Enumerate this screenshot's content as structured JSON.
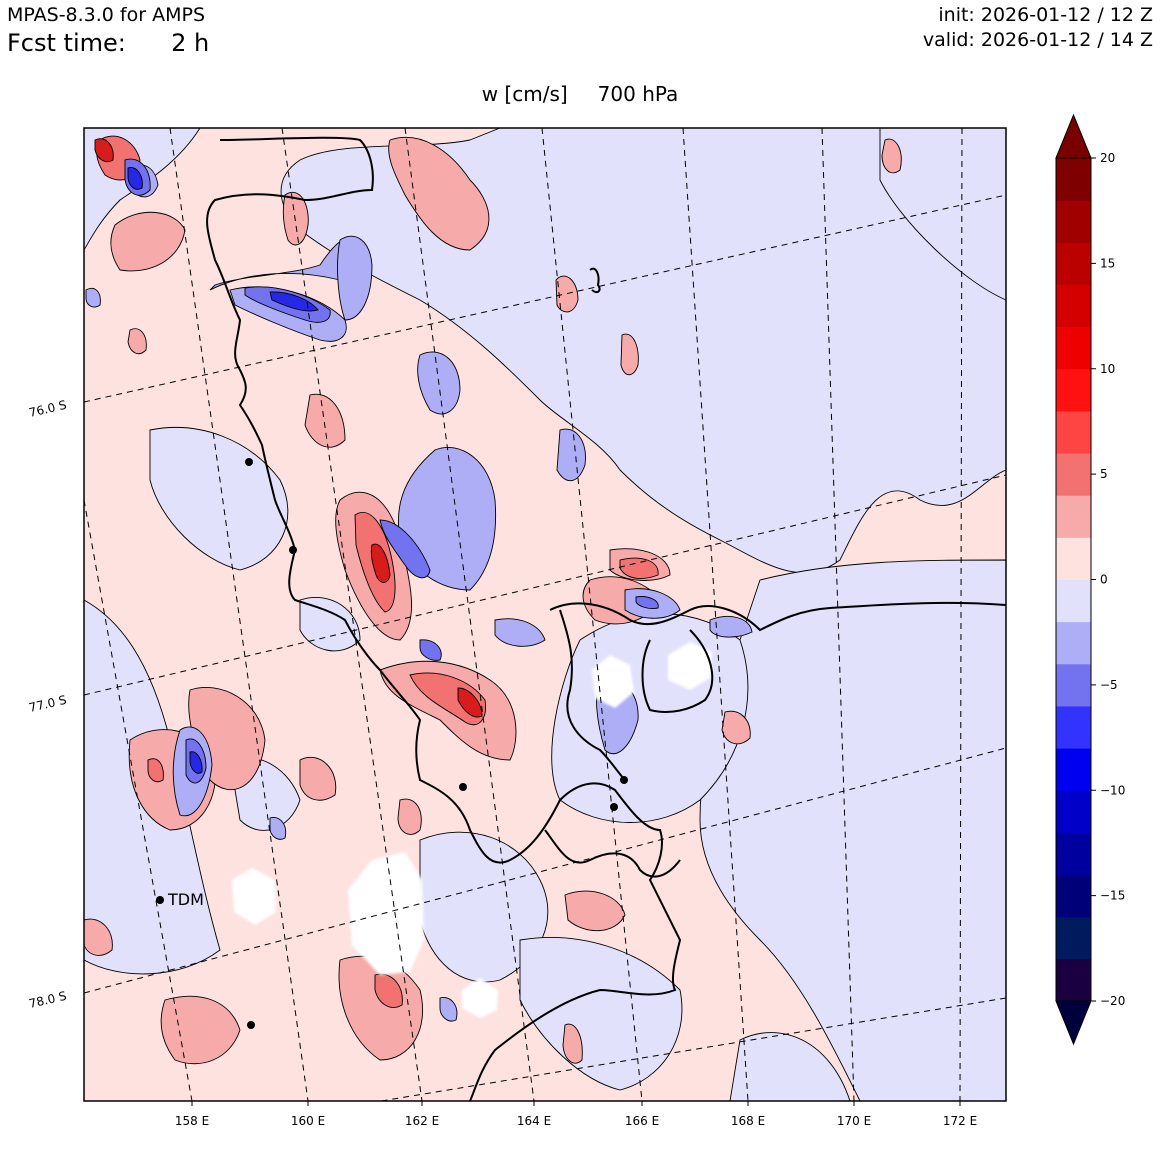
{
  "header": {
    "model": "MPAS-8.3.0 for AMPS",
    "fcst_label": "Fcst time:",
    "fcst_value": "2 h",
    "init": "init: 2026-01-12 / 12 Z",
    "valid": "valid: 2026-01-12 / 14 Z"
  },
  "map": {
    "field": "w [cm/s]",
    "level": "700 hPa",
    "title": "w [cm/s]    700 hPa",
    "station_label": "TDM",
    "lon_labels": [
      "158 E",
      "160 E",
      "162 E",
      "164 E",
      "166 E",
      "168 E",
      "170 E",
      "172 E"
    ],
    "lat_labels": [
      "76.0 S",
      "77.0 S",
      "78.0 S"
    ],
    "colors": {
      "near_zero_pos": "#fde2e0",
      "near_zero_neg": "#e1e1fb",
      "pos_light": "#f7aaaa",
      "pos_mid": "#f27272",
      "pos_strong": "#d81c1c",
      "neg_light": "#aeaef6",
      "neg_mid": "#7373f0",
      "neg_strong": "#2727e6"
    }
  },
  "colorbar": {
    "tick_labels": [
      "20",
      "15",
      "10",
      "5",
      "0",
      "−5",
      "−10",
      "−15",
      "−20"
    ],
    "colors": [
      "#1a0040",
      "#001a5e",
      "#000079",
      "#00009e",
      "#0000c8",
      "#0000f0",
      "#3333ff",
      "#7373f0",
      "#aeaef6",
      "#e1e1fb",
      "#fde2e0",
      "#f7aaaa",
      "#f27272",
      "#ff4444",
      "#ff1111",
      "#ee0000",
      "#d40000",
      "#bb0000",
      "#a00000",
      "#7f0000"
    ],
    "min_color": "#00003d",
    "max_color": "#7a0000",
    "min": -20,
    "max": 20
  }
}
